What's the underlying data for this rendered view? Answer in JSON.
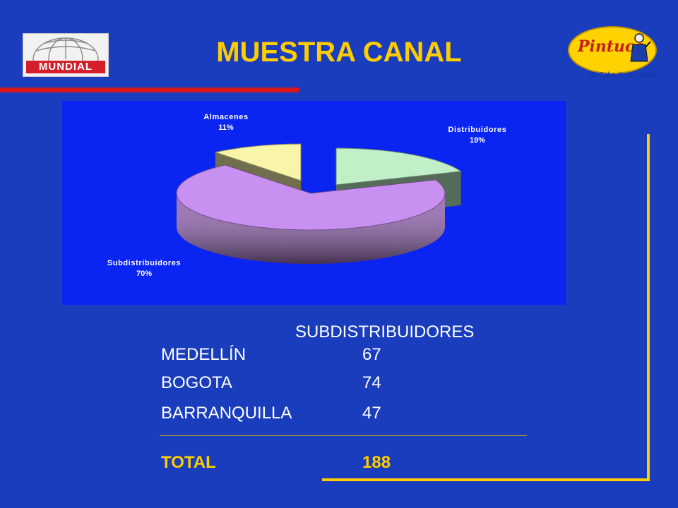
{
  "header": {
    "title": "MUESTRA CANAL",
    "left_logo": {
      "icon": "globe-icon",
      "text": "MUNDIAL"
    },
    "right_logo": {
      "icon": "painter-icon",
      "text": "Pintuco",
      "tagline": "El Color de la Calidad"
    }
  },
  "chart_data": {
    "type": "pie",
    "title": "",
    "categories": [
      "Distribuidores",
      "Subdistribuidores",
      "Almacenes"
    ],
    "values": [
      19,
      70,
      11
    ],
    "labels": [
      {
        "name": "Almacenes",
        "value": "11%"
      },
      {
        "name": "Distribuidores",
        "value": "19%"
      },
      {
        "name": "Subdistribuidores",
        "value": "70%"
      }
    ],
    "colors": [
      "#bff0c8",
      "#c890f0",
      "#f8f5a8"
    ],
    "style": "3d-exploded",
    "legend": "none"
  },
  "table": {
    "header": "SUBDISTRIBUIDORES",
    "rows": [
      {
        "city": "MEDELLÍN",
        "value": "67"
      },
      {
        "city": "BOGOTA",
        "value": "74"
      },
      {
        "city": "BARRANQUILLA",
        "value": "47"
      }
    ],
    "total_label": "TOTAL",
    "total_value": "188"
  },
  "colors": {
    "background": "#1a3dbd",
    "accent": "#ffcc00",
    "red_bar": "#d8171d",
    "chart_bg": "#0a24f2"
  }
}
